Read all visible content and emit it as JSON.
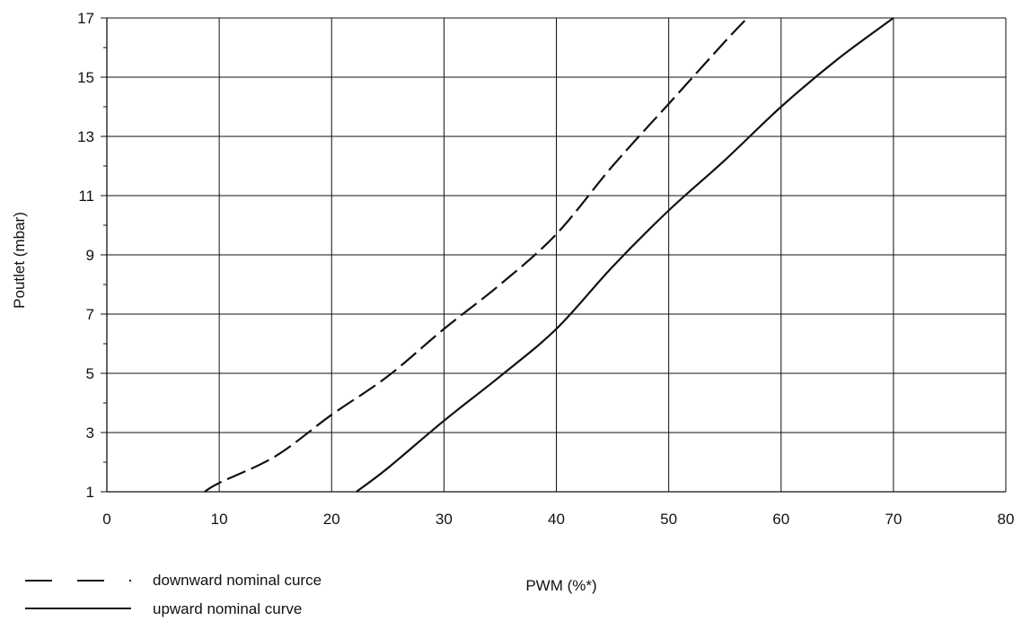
{
  "chart_data": {
    "type": "line",
    "title": "",
    "xlabel": "PWM (%*)",
    "ylabel": "Poutlet (mbar)",
    "xlim": [
      0,
      80
    ],
    "ylim": [
      1,
      17
    ],
    "x_ticks": [
      0,
      10,
      20,
      30,
      40,
      50,
      60,
      70,
      80
    ],
    "y_ticks": [
      1,
      3,
      5,
      7,
      9,
      11,
      13,
      15,
      17
    ],
    "grid": true,
    "legend_position": "bottom-left",
    "series": [
      {
        "name": "downward nominal curce",
        "style": "dashed",
        "color": "#111111",
        "points": [
          [
            8.7,
            1.0
          ],
          [
            10,
            1.3
          ],
          [
            15,
            2.2
          ],
          [
            20,
            3.6
          ],
          [
            25,
            4.9
          ],
          [
            30,
            6.5
          ],
          [
            35,
            8.0
          ],
          [
            40,
            9.7
          ],
          [
            45,
            12.0
          ],
          [
            50,
            14.1
          ],
          [
            55,
            16.2
          ],
          [
            57,
            17.0
          ]
        ]
      },
      {
        "name": "upward nominal curve",
        "style": "solid",
        "color": "#111111",
        "points": [
          [
            22.2,
            1.0
          ],
          [
            25,
            1.8
          ],
          [
            30,
            3.4
          ],
          [
            35,
            4.9
          ],
          [
            40,
            6.5
          ],
          [
            45,
            8.6
          ],
          [
            50,
            10.5
          ],
          [
            55,
            12.2
          ],
          [
            60,
            14.0
          ],
          [
            65,
            15.6
          ],
          [
            70,
            17.0
          ]
        ]
      }
    ]
  }
}
